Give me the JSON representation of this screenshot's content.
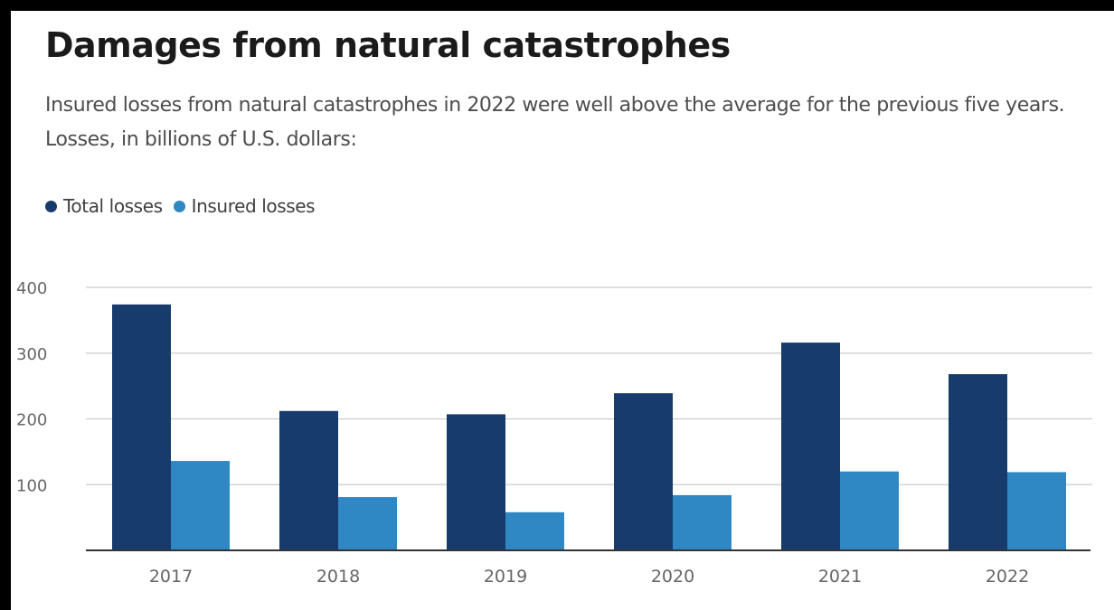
{
  "title": "Damages from natural catastrophes",
  "subtitle": "Insured losses from natural catastrophes in 2022 were well above the average for the previous five years. Losses, in billions of U.S. dollars:",
  "legend": {
    "total_label": "Total losses",
    "insured_label": "Insured losses"
  },
  "colors": {
    "total": "#173b6c",
    "insured": "#2f88c3",
    "grid": "#cccccc",
    "axis": "#333333",
    "tick_text": "#666666"
  },
  "chart_data": {
    "type": "bar",
    "categories": [
      "2017",
      "2018",
      "2019",
      "2020",
      "2021",
      "2022"
    ],
    "series": [
      {
        "name": "Total losses",
        "values": [
          374,
          212,
          207,
          239,
          316,
          268
        ]
      },
      {
        "name": "Insured losses",
        "values": [
          136,
          81,
          58,
          84,
          120,
          119
        ]
      }
    ],
    "yticks": [
      100,
      200,
      300,
      400
    ],
    "ylim": [
      0,
      400
    ],
    "grid": true,
    "legend_position": "top-left"
  }
}
